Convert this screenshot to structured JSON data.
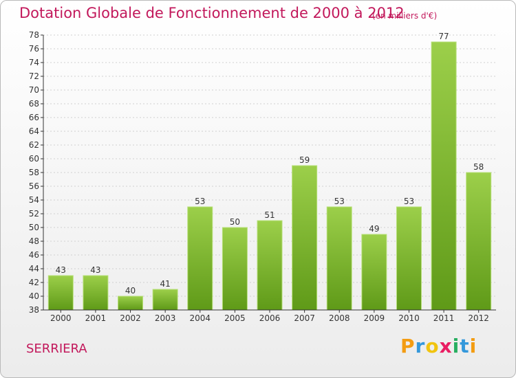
{
  "title": "Dotation Globale de Fonctionnement de 2000 à 2012",
  "subtitle": "(en milliers d'€)",
  "commune": "SERRIERA",
  "logo": {
    "letters": [
      {
        "ch": "P",
        "color": "#f39c12"
      },
      {
        "ch": "r",
        "color": "#3498db"
      },
      {
        "ch": "o",
        "color": "#f1c40f"
      },
      {
        "ch": "x",
        "color": "#e91e63"
      },
      {
        "ch": "i",
        "color": "#27ae60"
      },
      {
        "ch": "t",
        "color": "#3498db"
      },
      {
        "ch": "i",
        "color": "#f39c12"
      }
    ]
  },
  "colors": {
    "title": "#c2185b",
    "bar_top": "#9ccf4a",
    "bar_bottom": "#5f9a18",
    "axis": "#333333",
    "grid": "#d0d0d0"
  },
  "chart_data": {
    "type": "bar",
    "title": "Dotation Globale de Fonctionnement de 2000 à 2012",
    "subtitle": "(en milliers d'€)",
    "categories": [
      "2000",
      "2001",
      "2002",
      "2003",
      "2004",
      "2005",
      "2006",
      "2007",
      "2008",
      "2009",
      "2010",
      "2011",
      "2012"
    ],
    "values": [
      43,
      43,
      40,
      41,
      53,
      50,
      51,
      59,
      53,
      49,
      53,
      77,
      58
    ],
    "ylim": [
      38,
      78
    ],
    "ytick_step": 2,
    "grid": true,
    "data_labels": true
  }
}
